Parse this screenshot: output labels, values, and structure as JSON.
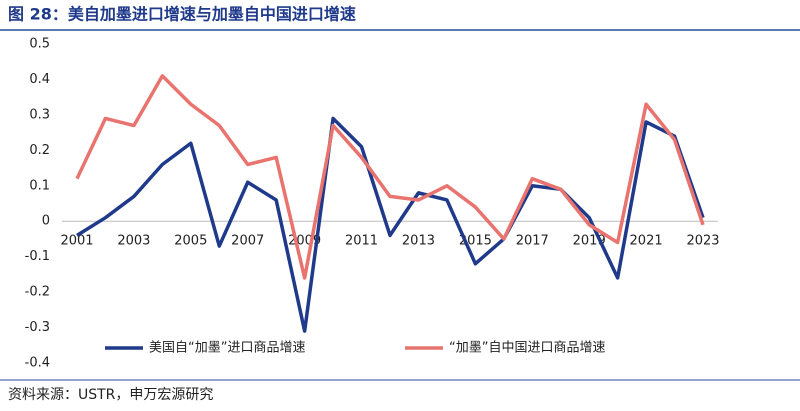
{
  "header": {
    "title": "图 28：美自加墨进口增速与加墨自中国进口增速"
  },
  "chart_data": {
    "type": "line",
    "categories": [
      "2001",
      null,
      "2003",
      null,
      "2005",
      null,
      "2007",
      null,
      "2009",
      null,
      "2011",
      null,
      "2013",
      null,
      "2015",
      null,
      "2017",
      null,
      "2019",
      null,
      "2021",
      null,
      "2023"
    ],
    "series": [
      {
        "name": "美国自“加墨”进口商品增速",
        "color": "#1f3a8a",
        "values": [
          -0.04,
          0.01,
          0.07,
          0.16,
          0.22,
          -0.07,
          0.11,
          0.06,
          -0.31,
          0.29,
          0.21,
          -0.04,
          0.08,
          0.06,
          -0.12,
          -0.05,
          0.1,
          0.09,
          0.01,
          -0.16,
          0.28,
          0.24,
          0.01
        ]
      },
      {
        "name": "“加墨”自中国进口商品增速",
        "color": "#e8736f",
        "values": [
          0.12,
          0.29,
          0.27,
          0.41,
          0.33,
          0.27,
          0.16,
          0.18,
          -0.16,
          0.27,
          0.18,
          0.07,
          0.06,
          0.1,
          0.04,
          -0.05,
          0.12,
          0.09,
          -0.01,
          -0.06,
          0.33,
          0.23,
          -0.01
        ]
      }
    ],
    "ylim": [
      -0.4,
      0.5
    ],
    "yticks": [
      0.5,
      0.4,
      0.3,
      0.2,
      0.1,
      0,
      -0.1,
      -0.2,
      -0.3,
      -0.4
    ],
    "grid": false,
    "legend": "bottom"
  },
  "footer": {
    "source": "资料来源：USTR，申万宏源研究"
  }
}
